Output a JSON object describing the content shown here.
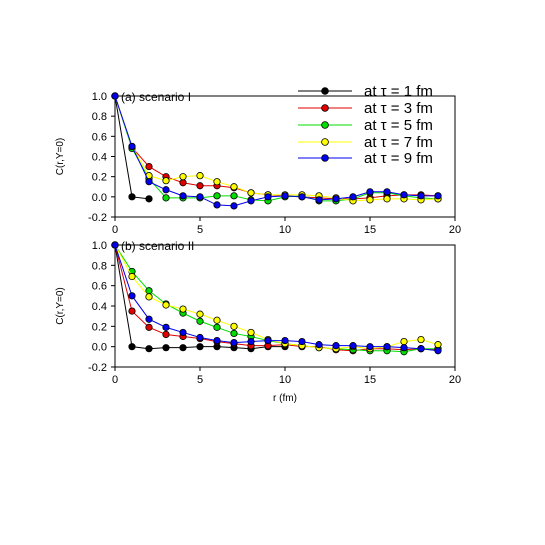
{
  "chart_data": [
    {
      "type": "line",
      "title": "(a) scenario I",
      "xlabel": "",
      "ylabel": "C(r,Y=0)",
      "xlim": [
        0,
        20
      ],
      "ylim": [
        -0.2,
        1.0
      ],
      "xticks": [
        0,
        5,
        10,
        15,
        20
      ],
      "yticks": [
        -0.2,
        0.0,
        0.2,
        0.4,
        0.6,
        0.8,
        1.0
      ],
      "xtick_labels": [
        "0",
        "5",
        "10",
        "15",
        "20"
      ],
      "ytick_labels": [
        "-0.2",
        "0.0",
        "0.2",
        "0.4",
        "0.6",
        "0.8",
        "1.0"
      ],
      "grid": false,
      "legend_position": "top-right",
      "series": [
        {
          "name": "at τ = 1 fm",
          "color": "#000000",
          "x": [
            0,
            1,
            2
          ],
          "values": [
            1.0,
            0.0,
            -0.02
          ]
        },
        {
          "name": "at τ = 3 fm",
          "color": "#e00000",
          "x": [
            0,
            1,
            2,
            3,
            4,
            5,
            6,
            7,
            8,
            9,
            10,
            11,
            12,
            13,
            14,
            15,
            16,
            17,
            18,
            19
          ],
          "values": [
            1.0,
            0.49,
            0.3,
            0.2,
            0.14,
            0.11,
            0.11,
            0.09,
            0.04,
            0.02,
            0.01,
            0.0,
            -0.01,
            -0.02,
            -0.02,
            -0.01,
            0.01,
            0.02,
            0.02,
            0.01
          ]
        },
        {
          "name": "at τ = 5 fm",
          "color": "#00dd00",
          "x": [
            0,
            1,
            2,
            3,
            4,
            5,
            6,
            7,
            8,
            9,
            10,
            11,
            12,
            13,
            14,
            15,
            16,
            17,
            18,
            19
          ],
          "values": [
            1.0,
            0.48,
            0.18,
            -0.01,
            -0.01,
            -0.01,
            0.01,
            0.01,
            -0.03,
            -0.04,
            0.0,
            0.01,
            -0.04,
            -0.04,
            -0.02,
            0.04,
            0.04,
            0.01,
            -0.01,
            -0.02
          ]
        },
        {
          "name": "at τ = 7 fm",
          "color": "#ffff00",
          "x": [
            0,
            1,
            2,
            3,
            4,
            5,
            6,
            7,
            8,
            9,
            10,
            11,
            12,
            13,
            14,
            15,
            16,
            17,
            18,
            19
          ],
          "values": [
            1.0,
            0.5,
            0.21,
            0.16,
            0.2,
            0.21,
            0.15,
            0.1,
            0.04,
            0.02,
            0.02,
            0.02,
            0.01,
            -0.01,
            -0.04,
            -0.03,
            -0.02,
            -0.02,
            -0.03,
            -0.02
          ]
        },
        {
          "name": "at τ = 9 fm",
          "color": "#0000ee",
          "x": [
            0,
            1,
            2,
            3,
            4,
            5,
            6,
            7,
            8,
            9,
            10,
            11,
            12,
            13,
            14,
            15,
            16,
            17,
            18,
            19
          ],
          "values": [
            1.0,
            0.5,
            0.15,
            0.07,
            0.01,
            0.0,
            -0.08,
            -0.09,
            -0.04,
            0.0,
            0.01,
            0.0,
            -0.03,
            -0.02,
            0.0,
            0.05,
            0.05,
            0.02,
            0.01,
            0.01
          ]
        }
      ]
    },
    {
      "type": "line",
      "title": "(b) scenario II",
      "xlabel": "r (fm)",
      "ylabel": "C(r,Y=0)",
      "xlim": [
        0,
        20
      ],
      "ylim": [
        -0.2,
        1.0
      ],
      "xticks": [
        0,
        5,
        10,
        15,
        20
      ],
      "yticks": [
        -0.2,
        0.0,
        0.2,
        0.4,
        0.6,
        0.8,
        1.0
      ],
      "xtick_labels": [
        "0",
        "5",
        "10",
        "15",
        "20"
      ],
      "ytick_labels": [
        "-0.2",
        "0.0",
        "0.2",
        "0.4",
        "0.6",
        "0.8",
        "1.0"
      ],
      "grid": false,
      "series": [
        {
          "name": "at τ = 1 fm",
          "color": "#000000",
          "x": [
            0,
            1,
            2,
            3,
            4,
            5,
            6,
            7,
            8,
            9,
            10
          ],
          "values": [
            1.0,
            0.0,
            -0.02,
            -0.01,
            -0.01,
            0.0,
            0.0,
            -0.01,
            -0.02,
            0.0,
            0.0
          ]
        },
        {
          "name": "at τ = 3 fm",
          "color": "#e00000",
          "x": [
            0,
            1,
            2,
            3,
            4,
            5,
            6,
            7,
            8,
            9,
            10,
            11,
            12,
            13,
            14,
            15,
            16,
            17,
            18,
            19
          ],
          "values": [
            1.0,
            0.35,
            0.19,
            0.12,
            0.1,
            0.08,
            0.05,
            0.03,
            0.01,
            0.01,
            0.02,
            0.0,
            0.0,
            -0.03,
            -0.04,
            -0.02,
            -0.02,
            -0.03,
            -0.02,
            -0.03
          ]
        },
        {
          "name": "at τ = 5 fm",
          "color": "#00dd00",
          "x": [
            0,
            1,
            2,
            3,
            4,
            5,
            6,
            7,
            8,
            9,
            10,
            11,
            12,
            13,
            14,
            15,
            16,
            17,
            18,
            19
          ],
          "values": [
            1.0,
            0.74,
            0.55,
            0.42,
            0.33,
            0.25,
            0.19,
            0.13,
            0.1,
            0.06,
            0.03,
            0.01,
            -0.01,
            -0.02,
            -0.03,
            -0.04,
            -0.04,
            -0.05,
            -0.02,
            -0.02
          ]
        },
        {
          "name": "at τ = 7 fm",
          "color": "#ffff00",
          "x": [
            0,
            1,
            2,
            3,
            4,
            5,
            6,
            7,
            8,
            9,
            10,
            11,
            12,
            13,
            14,
            15,
            16,
            17,
            18,
            19
          ],
          "values": [
            1.0,
            0.69,
            0.49,
            0.41,
            0.37,
            0.32,
            0.26,
            0.2,
            0.14,
            0.07,
            0.03,
            0.01,
            -0.01,
            -0.02,
            0.0,
            -0.02,
            0.0,
            0.05,
            0.07,
            0.02
          ]
        },
        {
          "name": "at τ = 9 fm",
          "color": "#0000ee",
          "x": [
            0,
            1,
            2,
            3,
            4,
            5,
            6,
            7,
            8,
            9,
            10,
            11,
            12,
            13,
            14,
            15,
            16,
            17,
            18,
            19
          ],
          "values": [
            1.0,
            0.5,
            0.27,
            0.19,
            0.14,
            0.09,
            0.06,
            0.04,
            0.05,
            0.06,
            0.06,
            0.05,
            0.02,
            0.01,
            0.01,
            0.0,
            0.0,
            -0.01,
            -0.02,
            -0.04
          ]
        }
      ]
    }
  ]
}
